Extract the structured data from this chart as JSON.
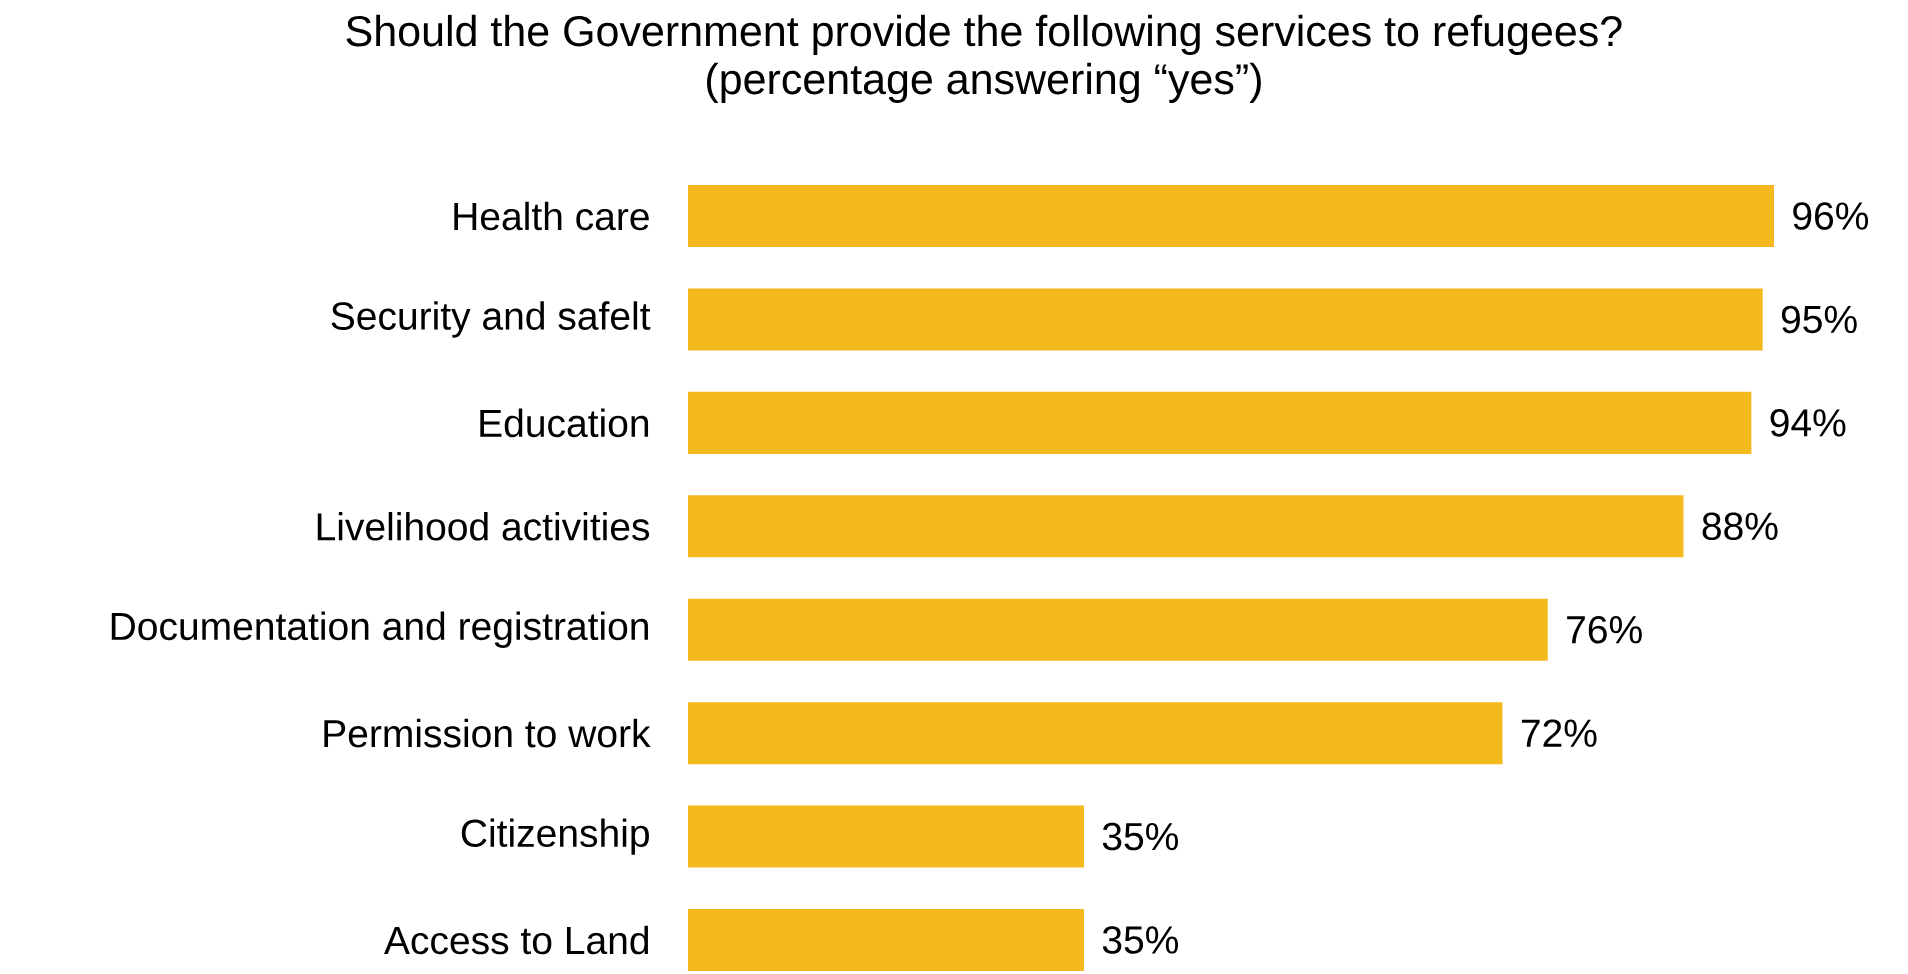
{
  "chart_data": {
    "type": "bar",
    "orientation": "horizontal",
    "title": "Should the Government provide the following services to refugees?",
    "subtitle": "(percentage answering “yes”)",
    "categories": [
      "Health care",
      "Security and safelt",
      "Education",
      "Livelihood activities",
      "Documentation and registration",
      "Permission to work",
      "Citizenship",
      "Access to Land"
    ],
    "values": [
      96,
      95,
      94,
      88,
      76,
      72,
      35,
      35
    ],
    "value_labels": [
      "96%",
      "95%",
      "94%",
      "88%",
      "76%",
      "72%",
      "35%",
      "35%"
    ],
    "color": "#f3b91d"
  }
}
